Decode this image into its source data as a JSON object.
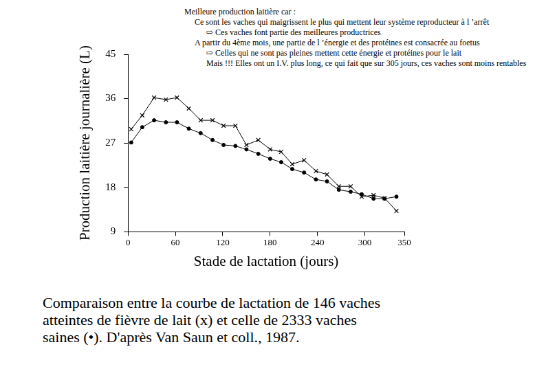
{
  "chart_data": {
    "type": "line",
    "annotations": [
      "Meilleure production laitière car :",
      "Ce sont les vaches qui maigrissent le plus qui mettent leur système reproducteur à l ’arrêt",
      "⇨ Ces vaches font partie des meilleures productrices",
      "A partir du 4ème mois, une partie de l ’énergie et des protéines est consacrée au foetus",
      "⇨ Celles qui ne sont pas pleines mettent cette énergie et protéines pour le lait",
      "Mais !!! Elles ont un I.V. plus long, ce qui fait que sur 305 jours, ces vaches sont moins rentables"
    ],
    "caption": [
      "Comparaison entre la courbe de lactation de 146 vaches",
      "atteintes de fièvre de lait (x) et celle de 2333 vaches",
      "saines (•). D'après Van Saun et coll., 1987."
    ],
    "x_label": "Stade de lactation (jours)",
    "y_label": "Production laitière journalière (L)",
    "x": [
      4,
      18,
      33,
      48,
      62,
      77,
      92,
      107,
      121,
      136,
      150,
      165,
      180,
      194,
      208,
      223,
      238,
      252,
      267,
      282,
      296,
      311,
      325,
      340
    ],
    "series": [
      {
        "color": "#000000",
        "marker": "cross",
        "line_style": "solid",
        "values": [
          29.8,
          32.6,
          36.2,
          35.8,
          36.2,
          34.0,
          31.6,
          31.6,
          30.5,
          30.5,
          26.6,
          27.6,
          25.7,
          25.2,
          22.7,
          23.5,
          21.3,
          20.6,
          18.2,
          18.2,
          16.1,
          16.4,
          15.8,
          13.2
        ]
      },
      {
        "color": "#000000",
        "marker": "circle",
        "line_style": "solid",
        "values": [
          27.1,
          30.2,
          31.6,
          31.2,
          31.2,
          29.9,
          29.0,
          27.6,
          26.6,
          26.4,
          25.7,
          24.8,
          23.8,
          23.1,
          21.7,
          21.0,
          19.6,
          19.2,
          17.5,
          17.1,
          16.6,
          15.7,
          15.7,
          16.1
        ]
      }
    ],
    "xlim": [
      0,
      350
    ],
    "xticks": [
      0,
      60,
      120,
      180,
      240,
      300,
      350
    ],
    "ylim": [
      9,
      45
    ],
    "yticks": [
      9,
      18,
      27,
      36,
      45
    ],
    "grid": false
  }
}
